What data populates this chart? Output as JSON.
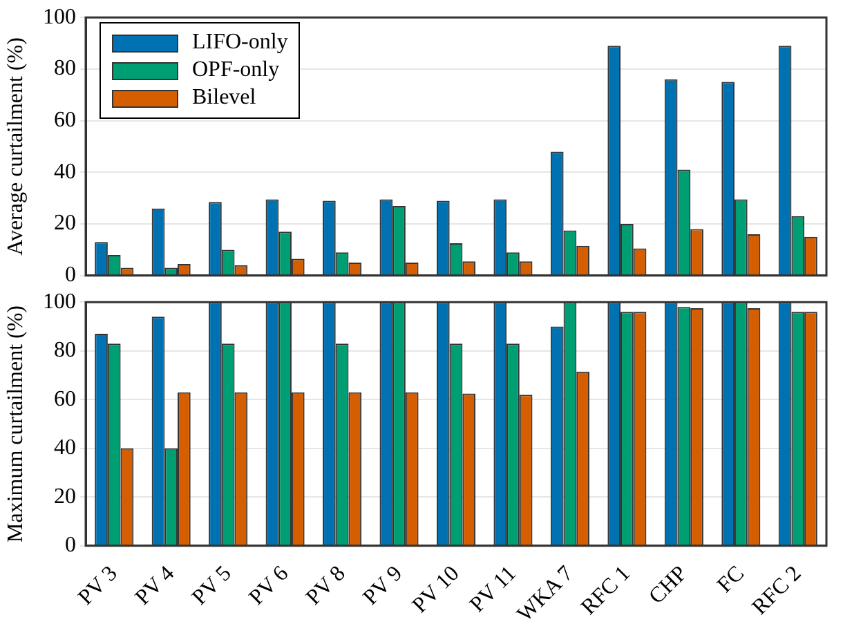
{
  "chart_data": [
    {
      "type": "bar",
      "ylabel": "Average curtailment (%)",
      "categories": [
        null,
        null,
        null,
        null,
        null,
        null,
        null,
        null,
        null,
        null,
        null,
        null,
        null
      ],
      "series": [
        {
          "name": "LIFO-only",
          "color": "#0072b2",
          "values": [
            13,
            26,
            28.5,
            29.5,
            29,
            29.5,
            29,
            29.5,
            48,
            89,
            76,
            75,
            89
          ]
        },
        {
          "name": "OPF-only",
          "color": "#009e73",
          "values": [
            8,
            3,
            10,
            17,
            9,
            27,
            12.5,
            9,
            17.5,
            20,
            41,
            29.5,
            23
          ]
        },
        {
          "name": "Bilevel",
          "color": "#d55e00",
          "values": [
            3,
            4.5,
            4,
            6.5,
            5,
            5,
            5.5,
            5.5,
            11.5,
            10.5,
            18,
            16,
            15
          ]
        }
      ],
      "ylim": [
        0,
        100
      ],
      "yticks": [
        0,
        20,
        40,
        60,
        80,
        100
      ],
      "grid": "y",
      "legend": "top left",
      "tick_labels": "y"
    },
    {
      "type": "bar",
      "ylabel": "Maximum curtailment (%)",
      "categories": [
        "PV 3",
        "PV 4",
        "PV 5",
        "PV 6",
        "PV 8",
        "PV 9",
        "PV 10",
        "PV 11",
        "WKA 7",
        "RFC 1",
        "CHP",
        "FC",
        "RFC 2"
      ],
      "series": [
        {
          "color": "#0072b2",
          "values": [
            87,
            94,
            100,
            100,
            100,
            100,
            100,
            100,
            90,
            100,
            100,
            100,
            100
          ]
        },
        {
          "color": "#009e73",
          "values": [
            83,
            40,
            83,
            100,
            83,
            100,
            83,
            83,
            100,
            96,
            98,
            100,
            96
          ]
        },
        {
          "color": "#d55e00",
          "values": [
            40,
            63,
            63,
            63,
            63,
            63,
            62.5,
            62,
            71.5,
            96,
            97.5,
            97.5,
            96
          ]
        }
      ],
      "ylim": [
        0,
        100
      ],
      "yticks": [
        0,
        20,
        40,
        60,
        80,
        100
      ],
      "grid": "y"
    }
  ]
}
